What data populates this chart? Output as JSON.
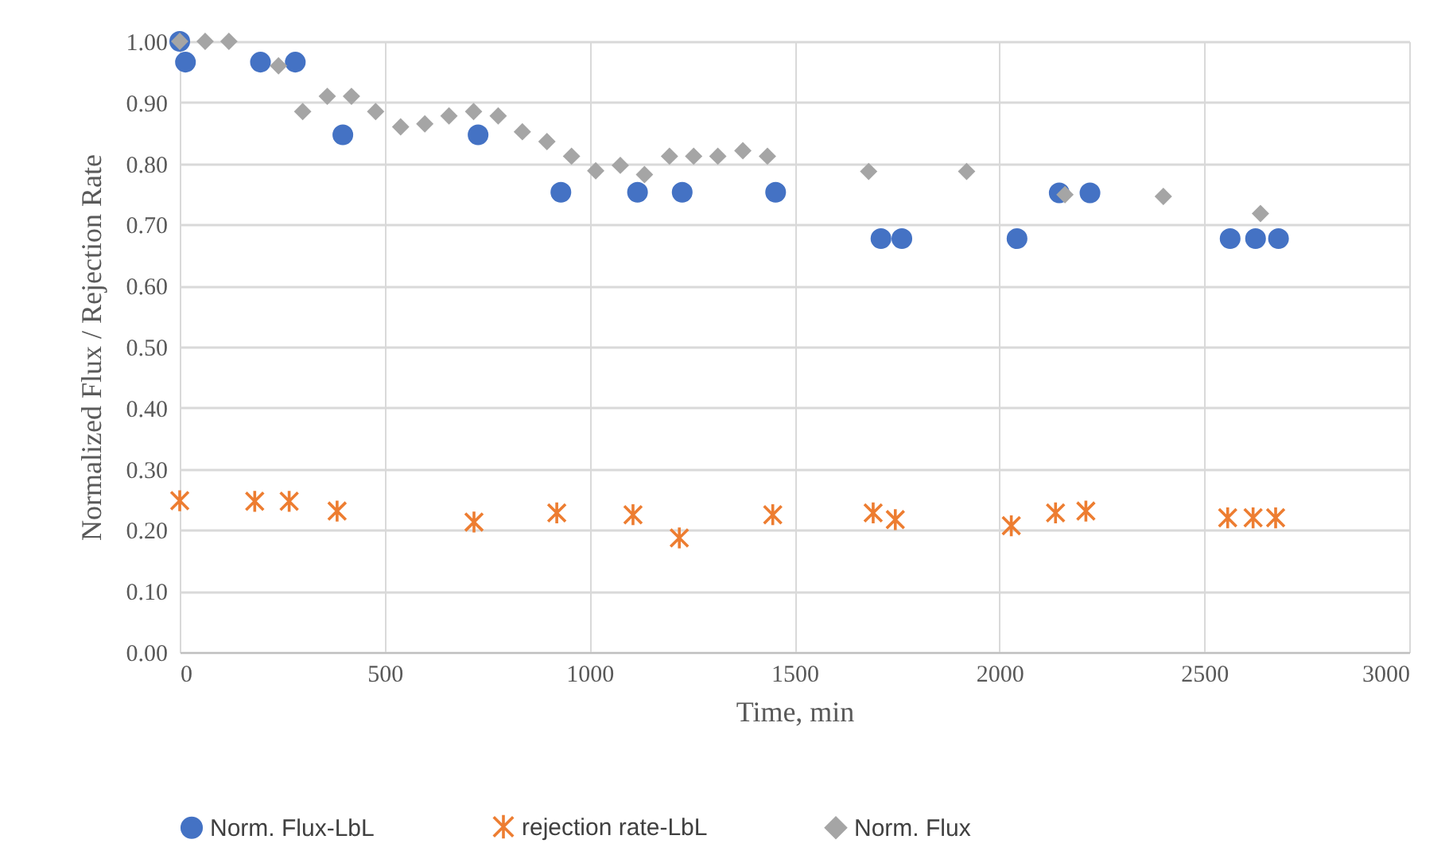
{
  "chart_data": {
    "type": "scatter",
    "xlabel": "Time, min",
    "ylabel": "Normalized Flux /  Rejection Rate",
    "xlim": [
      0,
      3000
    ],
    "xticks": [
      0,
      500,
      1000,
      1500,
      2000,
      2500,
      3000
    ],
    "ylim": [
      0,
      1
    ],
    "yticks": [
      {
        "value": 0,
        "label": "0.00"
      },
      {
        "value": 0.1,
        "label": "0.10"
      },
      {
        "value": 0.2,
        "label": "0.20"
      },
      {
        "value": 0.3,
        "label": "0.30"
      },
      {
        "value": 0.4,
        "label": "0.40"
      },
      {
        "value": 0.5,
        "label": "0.50"
      },
      {
        "value": 0.6,
        "label": "0.60"
      },
      {
        "value": 0.7,
        "label": "0.70"
      },
      {
        "value": 0.8,
        "label": "0.80"
      },
      {
        "value": 0.9,
        "label": "0.90"
      },
      {
        "value": 1,
        "label": "1.00"
      }
    ],
    "grid": true,
    "legend": "bottom",
    "series": [
      {
        "name": "Norm. Flux-LbL",
        "color": "#4472c4",
        "marker": "circle",
        "x": [
          0,
          14,
          197,
          282,
          398,
          728,
          930,
          1117,
          1226,
          1454,
          1711,
          1762,
          2043,
          2146,
          2221,
          2563,
          2625,
          2681
        ],
        "values": [
          1.0,
          0.966,
          0.966,
          0.966,
          0.847,
          0.847,
          0.753,
          0.753,
          0.753,
          0.753,
          0.677,
          0.677,
          0.677,
          0.752,
          0.752,
          0.677,
          0.677,
          0.677
        ]
      },
      {
        "name": "rejection rate-LbL",
        "color": "#ed7d31",
        "marker": "cross",
        "x": [
          0,
          183,
          267,
          384,
          718,
          920,
          1106,
          1219,
          1447,
          1692,
          1746,
          2029,
          2137,
          2211,
          2557,
          2619,
          2674
        ],
        "values": [
          0.248,
          0.247,
          0.247,
          0.231,
          0.213,
          0.228,
          0.225,
          0.187,
          0.225,
          0.228,
          0.217,
          0.207,
          0.228,
          0.231,
          0.22,
          0.22,
          0.22
        ]
      },
      {
        "name": "Norm. Flux",
        "color": "#a5a5a5",
        "marker": "diamond",
        "x": [
          0,
          62,
          120,
          241,
          300,
          360,
          419,
          478,
          539,
          598,
          657,
          717,
          777,
          836,
          896,
          956,
          1015,
          1075,
          1134,
          1195,
          1254,
          1313,
          1374,
          1434,
          1681,
          1920,
          2160,
          2400,
          2637
        ],
        "values": [
          1.0,
          1.0,
          1.0,
          0.96,
          0.885,
          0.91,
          0.91,
          0.885,
          0.86,
          0.865,
          0.878,
          0.885,
          0.878,
          0.852,
          0.836,
          0.812,
          0.788,
          0.797,
          0.782,
          0.812,
          0.812,
          0.812,
          0.821,
          0.812,
          0.787,
          0.787,
          0.749,
          0.746,
          0.718
        ]
      }
    ]
  }
}
